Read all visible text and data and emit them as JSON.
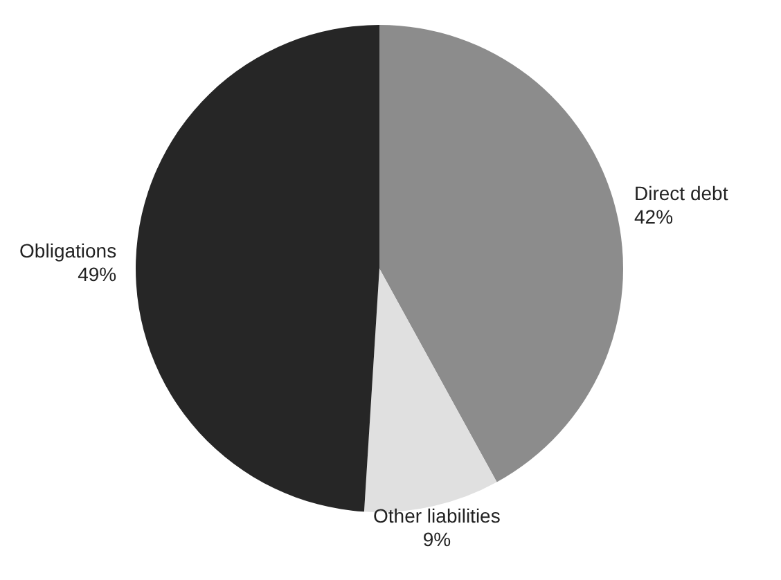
{
  "chart_data": {
    "type": "pie",
    "categories": [
      "Direct debt",
      "Other liabilities",
      "Obligations"
    ],
    "values": [
      42,
      9,
      49
    ],
    "value_labels": [
      "42%",
      "9%",
      "49%"
    ],
    "colors": [
      "#8c8c8c",
      "#e0e0e0",
      "#262626"
    ]
  }
}
